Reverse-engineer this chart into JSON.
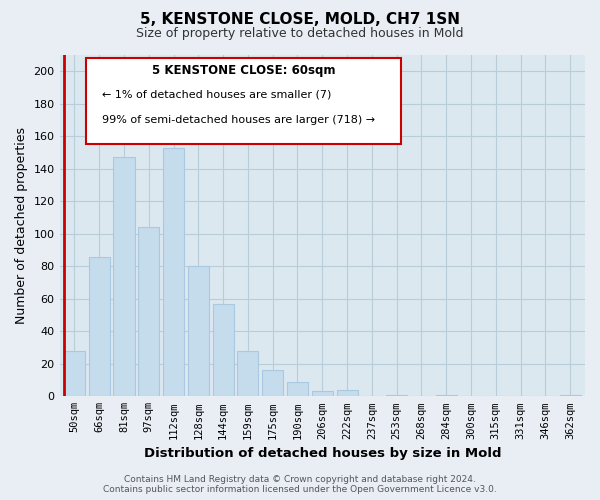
{
  "title": "5, KENSTONE CLOSE, MOLD, CH7 1SN",
  "subtitle": "Size of property relative to detached houses in Mold",
  "xlabel": "Distribution of detached houses by size in Mold",
  "ylabel": "Number of detached properties",
  "bar_labels": [
    "50sqm",
    "66sqm",
    "81sqm",
    "97sqm",
    "112sqm",
    "128sqm",
    "144sqm",
    "159sqm",
    "175sqm",
    "190sqm",
    "206sqm",
    "222sqm",
    "237sqm",
    "253sqm",
    "268sqm",
    "284sqm",
    "300sqm",
    "315sqm",
    "331sqm",
    "346sqm",
    "362sqm"
  ],
  "bar_values": [
    28,
    86,
    147,
    104,
    153,
    80,
    57,
    28,
    16,
    9,
    3,
    4,
    0,
    1,
    0,
    1,
    0,
    0,
    0,
    0,
    1
  ],
  "bar_color": "#c5dced",
  "bar_edge_color": "#aac8e0",
  "highlight_line_color": "#cc0000",
  "ylim": [
    0,
    210
  ],
  "yticks": [
    0,
    20,
    40,
    60,
    80,
    100,
    120,
    140,
    160,
    180,
    200
  ],
  "annotation_title": "5 KENSTONE CLOSE: 60sqm",
  "annotation_line1": "← 1% of detached houses are smaller (7)",
  "annotation_line2": "99% of semi-detached houses are larger (718) →",
  "footer_line1": "Contains HM Land Registry data © Crown copyright and database right 2024.",
  "footer_line2": "Contains public sector information licensed under the Open Government Licence v3.0.",
  "bg_color": "#e8eef4",
  "plot_bg_color": "#dce8f0",
  "grid_color": "#b8cdd8"
}
